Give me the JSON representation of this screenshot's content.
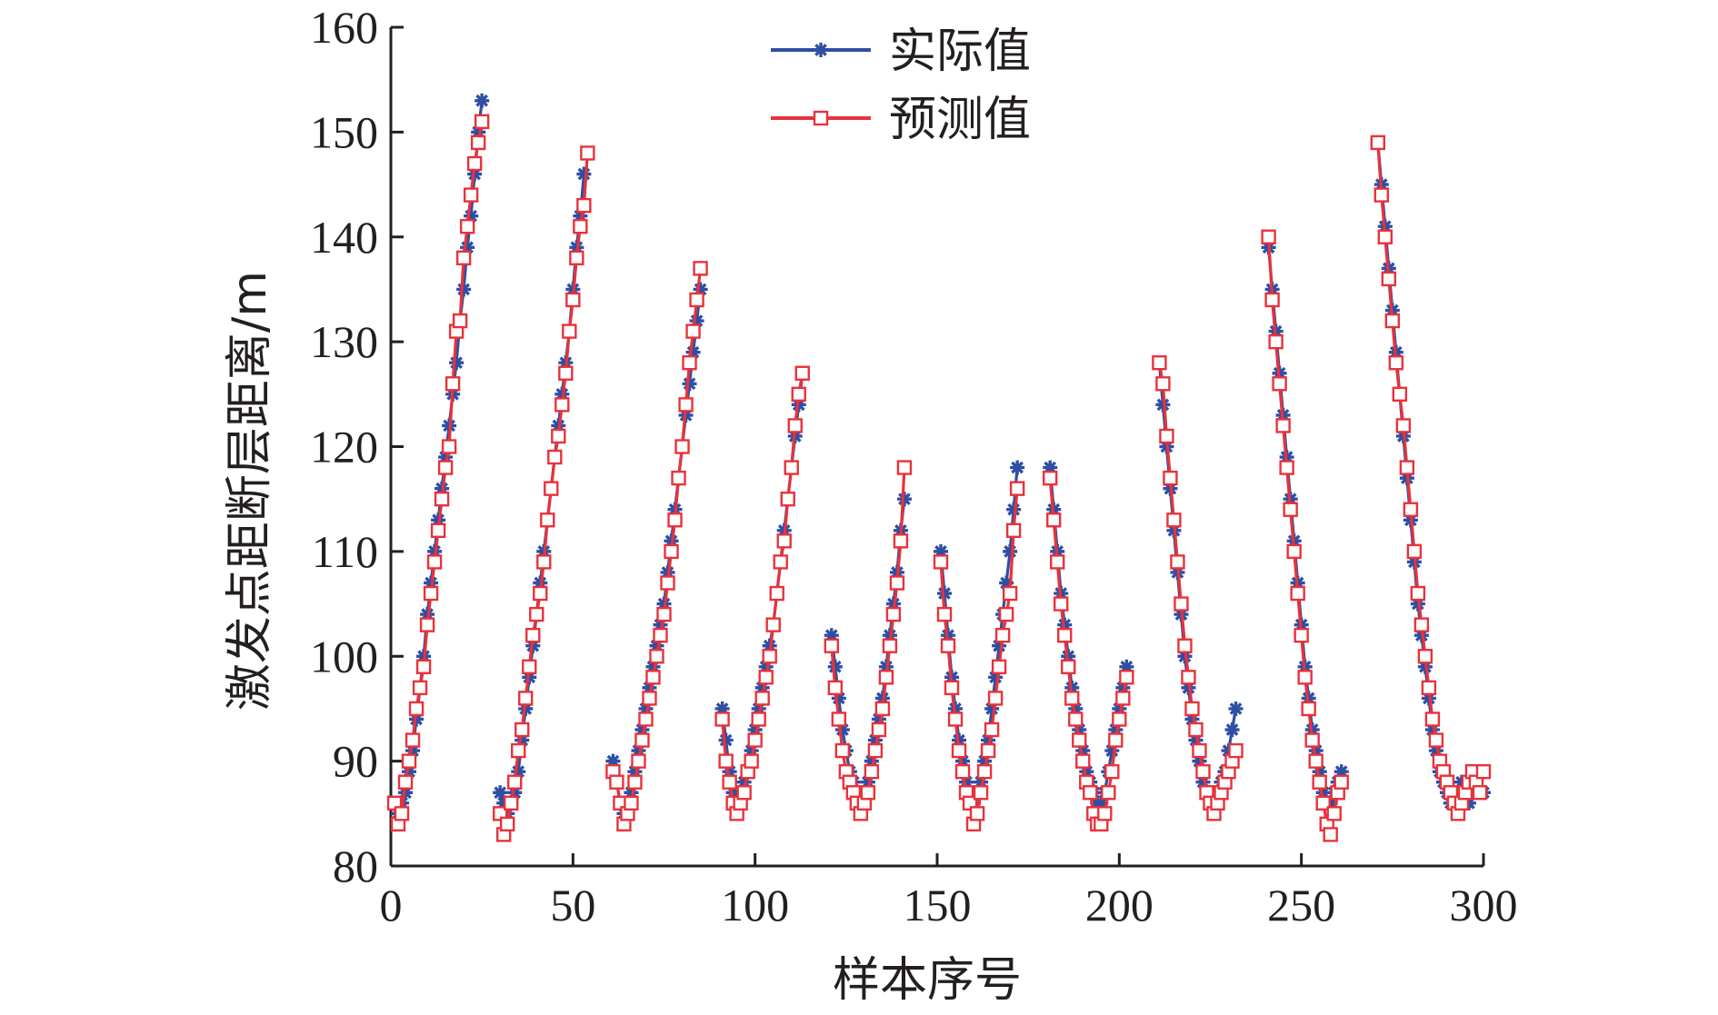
{
  "chart_data": {
    "type": "line",
    "title": "",
    "xlabel": "样本序号",
    "ylabel": "激发点距断层距离/m",
    "xlim": [
      0,
      300
    ],
    "ylim": [
      80,
      160
    ],
    "x_ticks": [
      0,
      50,
      100,
      150,
      200,
      250,
      300
    ],
    "y_ticks": [
      80,
      90,
      100,
      110,
      120,
      130,
      140,
      150,
      160
    ],
    "grid": false,
    "legend_position": "top-center",
    "series": [
      {
        "name": "实际值",
        "color": "#2e4fa3",
        "marker": "asterisk",
        "segments": [
          {
            "x_start": 1,
            "y": [
              86,
              85,
              86,
              87,
              89,
              91,
              94,
              97,
              100,
              104,
              107,
              110,
              113,
              116,
              119,
              122,
              125,
              128,
              132,
              135,
              139,
              142,
              146,
              150,
              153
            ]
          },
          {
            "x_start": 30,
            "y": [
              87,
              86,
              85,
              86,
              87,
              89,
              92,
              95,
              98,
              101,
              104,
              107,
              110,
              113,
              116,
              119,
              122,
              125,
              128,
              131,
              135,
              139,
              142,
              146
            ]
          },
          {
            "x_start": 61,
            "y": [
              90,
              88,
              86,
              85,
              86,
              87,
              89,
              91,
              93,
              95,
              97,
              99,
              101,
              103,
              105,
              108,
              111,
              114,
              117,
              120,
              123,
              126,
              129,
              132,
              135
            ]
          },
          {
            "x_start": 91,
            "y": [
              95,
              92,
              89,
              87,
              86,
              87,
              88,
              89,
              91,
              93,
              95,
              97,
              99,
              101,
              103,
              106,
              109,
              112,
              115,
              118,
              121,
              124,
              127
            ]
          },
          {
            "x_start": 121,
            "y": [
              102,
              99,
              96,
              93,
              91,
              89,
              88,
              87,
              86,
              87,
              88,
              90,
              92,
              94,
              96,
              99,
              102,
              105,
              108,
              112,
              115
            ]
          },
          {
            "x_start": 151,
            "y": [
              110,
              106,
              102,
              98,
              95,
              92,
              90,
              88,
              87,
              86,
              87,
              88,
              90,
              92,
              95,
              98,
              101,
              104,
              107,
              110,
              114,
              118
            ]
          },
          {
            "x_start": 181,
            "y": [
              118,
              114,
              110,
              106,
              103,
              100,
              97,
              95,
              93,
              91,
              89,
              88,
              87,
              86,
              86,
              87,
              89,
              91,
              93,
              95,
              97,
              99
            ]
          },
          {
            "x_start": 211,
            "y": [
              128,
              124,
              120,
              116,
              112,
              108,
              104,
              100,
              97,
              94,
              92,
              90,
              88,
              87,
              86,
              86,
              87,
              88,
              89,
              91,
              93,
              95
            ]
          },
          {
            "x_start": 241,
            "y": [
              139,
              135,
              131,
              127,
              123,
              119,
              115,
              111,
              107,
              103,
              99,
              96,
              93,
              91,
              89,
              87,
              86,
              86,
              87,
              88,
              89
            ]
          },
          {
            "x_start": 271,
            "y": [
              149,
              145,
              141,
              137,
              133,
              129,
              125,
              121,
              117,
              113,
              109,
              105,
              102,
              99,
              96,
              93,
              91,
              89,
              88,
              87,
              86,
              86,
              87,
              88,
              86,
              86,
              87,
              88,
              89,
              87
            ]
          }
        ]
      },
      {
        "name": "预测值",
        "color": "#e8323a",
        "marker": "square",
        "segments": [
          {
            "x_start": 1,
            "y": [
              86,
              84,
              85,
              88,
              90,
              92,
              95,
              97,
              99,
              103,
              106,
              109,
              112,
              115,
              118,
              120,
              126,
              131,
              132,
              138,
              141,
              144,
              147,
              149,
              151
            ]
          },
          {
            "x_start": 30,
            "y": [
              85,
              83,
              84,
              86,
              88,
              91,
              93,
              96,
              99,
              102,
              104,
              106,
              109,
              113,
              116,
              119,
              121,
              124,
              127,
              131,
              134,
              138,
              141,
              143,
              148
            ]
          },
          {
            "x_start": 61,
            "y": [
              89,
              88,
              86,
              84,
              85,
              86,
              88,
              90,
              92,
              94,
              96,
              98,
              100,
              102,
              104,
              107,
              110,
              113,
              117,
              120,
              124,
              128,
              131,
              134,
              137
            ]
          },
          {
            "x_start": 91,
            "y": [
              94,
              90,
              88,
              86,
              85,
              86,
              87,
              89,
              90,
              92,
              94,
              96,
              98,
              100,
              103,
              106,
              109,
              111,
              115,
              118,
              122,
              125,
              127
            ]
          },
          {
            "x_start": 121,
            "y": [
              101,
              97,
              94,
              91,
              89,
              88,
              87,
              86,
              85,
              86,
              87,
              89,
              91,
              93,
              95,
              98,
              101,
              104,
              107,
              111,
              118
            ]
          },
          {
            "x_start": 151,
            "y": [
              109,
              104,
              101,
              97,
              94,
              91,
              89,
              87,
              86,
              84,
              85,
              87,
              89,
              91,
              93,
              96,
              99,
              102,
              104,
              106,
              112,
              116
            ]
          },
          {
            "x_start": 181,
            "y": [
              117,
              113,
              109,
              105,
              102,
              99,
              96,
              94,
              92,
              90,
              88,
              87,
              85,
              84,
              84,
              85,
              87,
              89,
              92,
              94,
              96,
              98
            ]
          },
          {
            "x_start": 211,
            "y": [
              128,
              126,
              121,
              117,
              113,
              109,
              105,
              101,
              98,
              95,
              93,
              91,
              89,
              87,
              86,
              85,
              86,
              87,
              88,
              89,
              90,
              91
            ]
          },
          {
            "x_start": 241,
            "y": [
              140,
              134,
              130,
              126,
              122,
              118,
              114,
              110,
              106,
              102,
              98,
              95,
              92,
              90,
              88,
              86,
              84,
              83,
              85,
              87,
              88
            ]
          },
          {
            "x_start": 271,
            "y": [
              149,
              144,
              140,
              136,
              132,
              128,
              125,
              122,
              118,
              114,
              110,
              106,
              103,
              100,
              97,
              94,
              92,
              90,
              89,
              88,
              87,
              86,
              85,
              86,
              87,
              88,
              89,
              88,
              87,
              89
            ]
          }
        ]
      }
    ]
  }
}
